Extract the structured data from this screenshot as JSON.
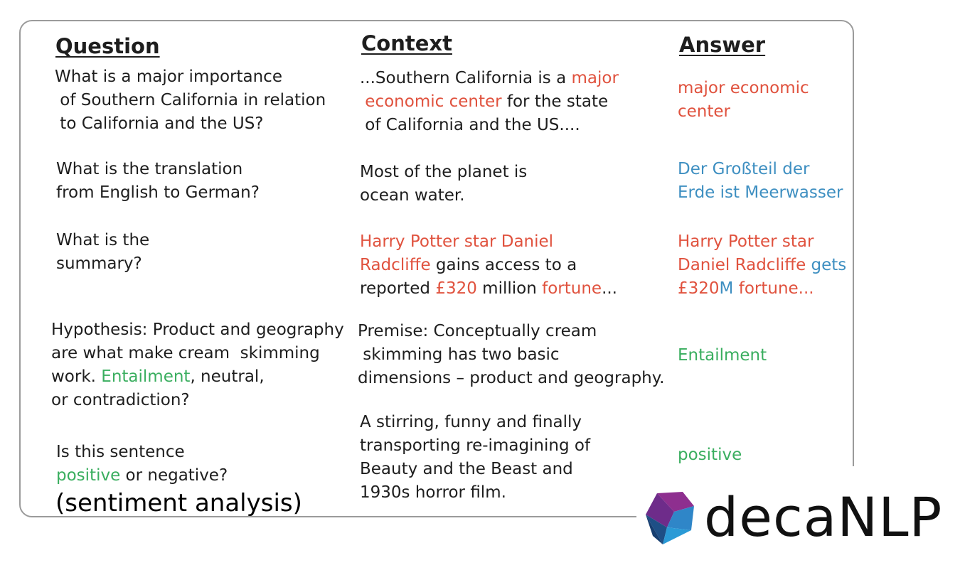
{
  "headers": {
    "question": "Question",
    "context": "Context",
    "answer": "Answer"
  },
  "rows": [
    {
      "question": [
        [
          {
            "t": "What is a major importance",
            "c": ""
          }
        ],
        [
          {
            "t": " of Southern California in relation",
            "c": ""
          }
        ],
        [
          {
            "t": " to California and the US?",
            "c": ""
          }
        ]
      ],
      "context": [
        [
          {
            "t": "...Southern California is a ",
            "c": ""
          },
          {
            "t": "major",
            "c": "red"
          }
        ],
        [
          {
            "t": " economic center",
            "c": "red"
          },
          {
            "t": " for the state",
            "c": ""
          }
        ],
        [
          {
            "t": " of California and the US....",
            "c": ""
          }
        ]
      ],
      "answer": [
        [
          {
            "t": "major economic",
            "c": "red"
          }
        ],
        [
          {
            "t": "center",
            "c": "red"
          }
        ]
      ]
    },
    {
      "question": [
        [
          {
            "t": "What is the translation",
            "c": ""
          }
        ],
        [
          {
            "t": "from English to German?",
            "c": ""
          }
        ]
      ],
      "context": [
        [
          {
            "t": "Most of the planet is",
            "c": ""
          }
        ],
        [
          {
            "t": "ocean water.",
            "c": ""
          }
        ]
      ],
      "answer": [
        [
          {
            "t": "Der Großteil der",
            "c": "blue"
          }
        ],
        [
          {
            "t": "Erde ist Meerwasser",
            "c": "blue"
          }
        ]
      ]
    },
    {
      "question": [
        [
          {
            "t": "What is the",
            "c": ""
          }
        ],
        [
          {
            "t": "summary?",
            "c": ""
          }
        ]
      ],
      "context": [
        [
          {
            "t": "Harry Potter star Daniel",
            "c": "red"
          }
        ],
        [
          {
            "t": "Radcliffe",
            "c": "red"
          },
          {
            "t": " gains access to a",
            "c": ""
          }
        ],
        [
          {
            "t": "reported ",
            "c": ""
          },
          {
            "t": "£320",
            "c": "red"
          },
          {
            "t": " million ",
            "c": ""
          },
          {
            "t": "fortune",
            "c": "red"
          },
          {
            "t": "...",
            "c": ""
          }
        ]
      ],
      "answer": [
        [
          {
            "t": "Harry Potter star",
            "c": "red"
          }
        ],
        [
          {
            "t": "Daniel Radcliffe",
            "c": "red"
          },
          {
            "t": " gets",
            "c": "blue"
          }
        ],
        [
          {
            "t": "£320",
            "c": "red"
          },
          {
            "t": "M",
            "c": "blue"
          },
          {
            "t": " fortune...",
            "c": "red"
          }
        ]
      ]
    },
    {
      "question": [
        [
          {
            "t": "Hypothesis: Product and geography",
            "c": ""
          }
        ],
        [
          {
            "t": "are what make cream  skimming",
            "c": ""
          }
        ],
        [
          {
            "t": "work. ",
            "c": ""
          },
          {
            "t": "Entailment",
            "c": "green"
          },
          {
            "t": ", neutral,",
            "c": ""
          }
        ],
        [
          {
            "t": "or contradiction?",
            "c": ""
          }
        ]
      ],
      "context": [
        [
          {
            "t": "Premise: Conceptually cream",
            "c": ""
          }
        ],
        [
          {
            "t": " skimming has two basic",
            "c": ""
          }
        ],
        [
          {
            "t": "dimensions – product and geography.",
            "c": ""
          }
        ]
      ],
      "answer": [
        [
          {
            "t": "Entailment",
            "c": "green"
          }
        ]
      ]
    },
    {
      "question": [
        [
          {
            "t": "Is this sentence",
            "c": ""
          }
        ],
        [
          {
            "t": "positive",
            "c": "green"
          },
          {
            "t": " or negative?",
            "c": ""
          }
        ]
      ],
      "context": [
        [
          {
            "t": "A stirring, funny and finally",
            "c": ""
          }
        ],
        [
          {
            "t": "transporting re-imagining of",
            "c": ""
          }
        ],
        [
          {
            "t": "Beauty and the Beast and",
            "c": ""
          }
        ],
        [
          {
            "t": "1930s horror film.",
            "c": ""
          }
        ]
      ],
      "answer": [
        [
          {
            "t": "positive",
            "c": "green"
          }
        ]
      ]
    }
  ],
  "note": "(sentiment analysis)",
  "logo": {
    "text": "decaNLP",
    "icon": "decanlp-polyhedron-icon"
  },
  "colors": {
    "highlight_red": "#e0523e",
    "highlight_blue": "#3e8fc1",
    "highlight_green": "#3aae5f"
  }
}
